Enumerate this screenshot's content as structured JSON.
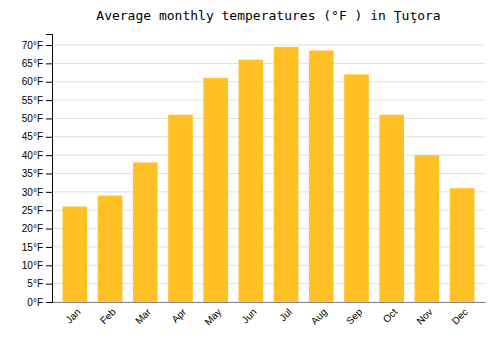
{
  "chart_data": {
    "type": "bar",
    "title": "Average monthly temperatures (°F ) in Ţuţora",
    "categories": [
      "Jan",
      "Feb",
      "Mar",
      "Apr",
      "May",
      "Jun",
      "Jul",
      "Aug",
      "Sep",
      "Oct",
      "Nov",
      "Dec"
    ],
    "values": [
      26,
      29,
      38,
      51,
      61,
      66,
      69.5,
      68.5,
      62,
      51,
      40,
      31
    ],
    "color": "#FFC125",
    "ylim": [
      0,
      73
    ],
    "yticks": [
      {
        "value": 0,
        "label": "0°F"
      },
      {
        "value": 5,
        "label": "5°F"
      },
      {
        "value": 10,
        "label": "10°F"
      },
      {
        "value": 15,
        "label": "15°F"
      },
      {
        "value": 20,
        "label": "20°F"
      },
      {
        "value": 25,
        "label": "25°F"
      },
      {
        "value": 30,
        "label": "30°F"
      },
      {
        "value": 35,
        "label": "35°F"
      },
      {
        "value": 40,
        "label": "40°F"
      },
      {
        "value": 45,
        "label": "45°F"
      },
      {
        "value": 50,
        "label": "50°F"
      },
      {
        "value": 55,
        "label": "55°F"
      },
      {
        "value": 60,
        "label": "60°F"
      },
      {
        "value": 65,
        "label": "65°F"
      },
      {
        "value": 70,
        "label": "70°F"
      }
    ],
    "grid": true
  }
}
